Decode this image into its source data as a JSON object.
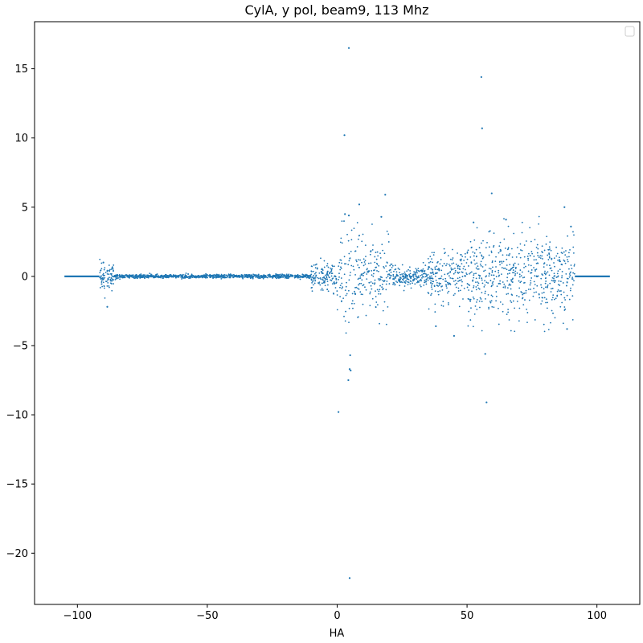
{
  "chart_data": {
    "type": "scatter",
    "title": "CylA, y pol, beam9, 113 Mhz",
    "xlabel": "HA",
    "ylabel": "",
    "xlim": [
      -116.5,
      116.5
    ],
    "ylim": [
      -23.7,
      18.4
    ],
    "x_ticks": [
      -100,
      -50,
      0,
      50,
      100
    ],
    "y_ticks": [
      -20,
      -15,
      -10,
      -5,
      0,
      5,
      10,
      15
    ],
    "x_tick_labels": [
      "−100",
      "−50",
      "0",
      "50",
      "100"
    ],
    "y_tick_labels": [
      "−20",
      "−15",
      "−10",
      "−5",
      "0",
      "5",
      "10",
      "15"
    ],
    "legend": {
      "location": "top-right",
      "entries": []
    },
    "grid": false,
    "color": "#1f77b4",
    "series": [
      {
        "flat_segments": [
          {
            "x_start": -105,
            "x_end": -91.5,
            "y": 0
          },
          {
            "x_start": 91.5,
            "x_end": 105,
            "y": 0
          }
        ],
        "outliers": [
          {
            "x": 4.5,
            "y": 16.5
          },
          {
            "x": 2.8,
            "y": 10.2
          },
          {
            "x": 55.5,
            "y": 14.4
          },
          {
            "x": 55.8,
            "y": 10.7
          },
          {
            "x": 18.5,
            "y": 5.9
          },
          {
            "x": 59.5,
            "y": 6.0
          },
          {
            "x": 87.5,
            "y": 5.0
          },
          {
            "x": 8.5,
            "y": 5.2
          },
          {
            "x": 3.0,
            "y": 4.5
          },
          {
            "x": 4.5,
            "y": 4.4
          },
          {
            "x": 17.0,
            "y": 4.3
          },
          {
            "x": 52.5,
            "y": 3.9
          },
          {
            "x": 65.0,
            "y": 4.1
          },
          {
            "x": 0.5,
            "y": -9.8
          },
          {
            "x": 4.3,
            "y": -7.5
          },
          {
            "x": 4.8,
            "y": -6.7
          },
          {
            "x": 5.2,
            "y": -6.8
          },
          {
            "x": 5.0,
            "y": -5.7
          },
          {
            "x": 57.5,
            "y": -9.1
          },
          {
            "x": 57.0,
            "y": -5.6
          },
          {
            "x": 4.8,
            "y": -21.8
          },
          {
            "x": -88.5,
            "y": -2.2
          },
          {
            "x": -90.0,
            "y": 1.0
          },
          {
            "x": 45.0,
            "y": -4.3
          },
          {
            "x": 38.0,
            "y": -3.6
          },
          {
            "x": 88.5,
            "y": -3.8
          },
          {
            "x": 90.0,
            "y": 3.6
          }
        ]
      }
    ]
  }
}
